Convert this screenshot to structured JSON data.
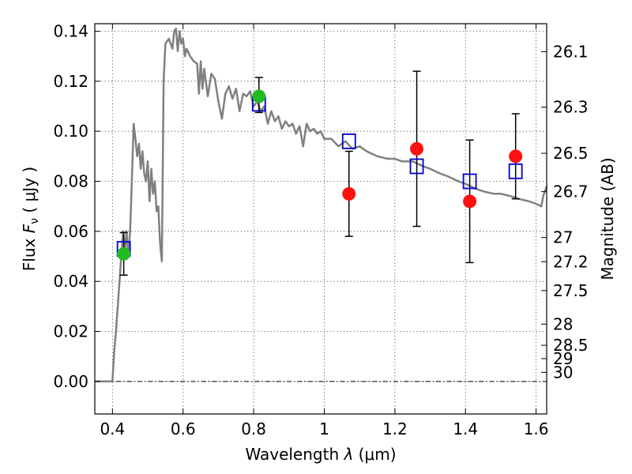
{
  "chart_data": {
    "type": "scatter",
    "xlabel": "Wavelength  λ (μm)",
    "ylabel": "Flux  Fν ( μJy )",
    "ylabel_parts": {
      "prefix": "Flux  ",
      "sym": "F",
      "sub": "ν",
      "suffix": "  ( μJy )"
    },
    "xlabel_parts": {
      "prefix": "Wavelength  ",
      "sym": "λ",
      "suffix": " (μm)"
    },
    "y2label": "Magnitude (AB)",
    "xlim": [
      0.35,
      1.63
    ],
    "ylim": [
      -0.013,
      0.143
    ],
    "grid": true,
    "x_ticks": [
      0.4,
      0.6,
      0.8,
      1.0,
      1.2,
      1.4,
      1.6
    ],
    "x_tick_labels": [
      "0.4",
      "0.6",
      "0.8",
      "1",
      "1.2",
      "1.4",
      "1.6"
    ],
    "y_ticks": [
      0.0,
      0.02,
      0.04,
      0.06,
      0.08,
      0.1,
      0.12,
      0.14
    ],
    "y_tick_labels": [
      "0.00",
      "0.02",
      "0.04",
      "0.06",
      "0.08",
      "0.10",
      "0.12",
      "0.14"
    ],
    "mag_ticks": [
      26.1,
      26.3,
      26.5,
      26.7,
      27,
      27.2,
      27.5,
      28,
      28.5,
      29,
      30
    ],
    "mag_tick_labels": [
      "26.1",
      "26.3",
      "26.5",
      "26.7",
      "27",
      "27.2",
      "27.5",
      "28",
      "28.5",
      "29",
      "30"
    ],
    "series": [
      {
        "name": "template-spectrum",
        "kind": "line",
        "color": "#808080",
        "x": [
          0.35,
          0.39,
          0.4,
          0.405,
          0.41,
          0.42,
          0.425,
          0.43,
          0.435,
          0.44,
          0.445,
          0.45,
          0.455,
          0.46,
          0.465,
          0.47,
          0.475,
          0.48,
          0.485,
          0.49,
          0.495,
          0.5,
          0.505,
          0.51,
          0.515,
          0.52,
          0.525,
          0.53,
          0.535,
          0.54,
          0.545,
          0.55,
          0.56,
          0.57,
          0.575,
          0.58,
          0.585,
          0.59,
          0.595,
          0.6,
          0.605,
          0.61,
          0.62,
          0.63,
          0.64,
          0.645,
          0.65,
          0.655,
          0.66,
          0.67,
          0.68,
          0.69,
          0.7,
          0.71,
          0.72,
          0.73,
          0.74,
          0.75,
          0.76,
          0.77,
          0.78,
          0.79,
          0.8,
          0.81,
          0.82,
          0.83,
          0.84,
          0.85,
          0.86,
          0.87,
          0.88,
          0.89,
          0.9,
          0.91,
          0.92,
          0.93,
          0.94,
          0.95,
          0.96,
          0.97,
          0.98,
          0.99,
          1.0,
          1.02,
          1.04,
          1.06,
          1.08,
          1.1,
          1.12,
          1.15,
          1.18,
          1.2,
          1.22,
          1.25,
          1.28,
          1.3,
          1.33,
          1.35,
          1.38,
          1.4,
          1.43,
          1.45,
          1.48,
          1.5,
          1.53,
          1.55,
          1.58,
          1.6,
          1.615,
          1.62,
          1.63
        ],
        "y": [
          0.0,
          0.0,
          0.0,
          0.012,
          0.02,
          0.04,
          0.05,
          0.06,
          0.052,
          0.06,
          0.05,
          0.06,
          0.08,
          0.103,
          0.097,
          0.09,
          0.095,
          0.085,
          0.092,
          0.083,
          0.08,
          0.088,
          0.072,
          0.085,
          0.075,
          0.08,
          0.068,
          0.07,
          0.055,
          0.048,
          0.12,
          0.135,
          0.137,
          0.133,
          0.14,
          0.141,
          0.132,
          0.14,
          0.135,
          0.137,
          0.13,
          0.133,
          0.13,
          0.128,
          0.127,
          0.115,
          0.128,
          0.117,
          0.125,
          0.114,
          0.123,
          0.121,
          0.112,
          0.105,
          0.115,
          0.118,
          0.113,
          0.117,
          0.108,
          0.115,
          0.114,
          0.116,
          0.11,
          0.112,
          0.108,
          0.11,
          0.103,
          0.108,
          0.104,
          0.106,
          0.101,
          0.104,
          0.102,
          0.103,
          0.099,
          0.102,
          0.094,
          0.103,
          0.1,
          0.101,
          0.099,
          0.1,
          0.097,
          0.097,
          0.094,
          0.096,
          0.093,
          0.094,
          0.092,
          0.09,
          0.089,
          0.089,
          0.088,
          0.088,
          0.086,
          0.085,
          0.083,
          0.082,
          0.08,
          0.079,
          0.077,
          0.076,
          0.075,
          0.075,
          0.074,
          0.073,
          0.072,
          0.071,
          0.07,
          0.074,
          0.078
        ]
      },
      {
        "name": "template-bandpass-flux",
        "kind": "open-square",
        "color": "#0000cc",
        "x": [
          0.432,
          0.815,
          1.07,
          1.262,
          1.412,
          1.542
        ],
        "y": [
          0.053,
          0.111,
          0.096,
          0.086,
          0.08,
          0.084
        ]
      },
      {
        "name": "observed-detections",
        "kind": "filled-circle",
        "color": "#22bb22",
        "x": [
          0.432,
          0.815
        ],
        "y": [
          0.051,
          0.114
        ],
        "err_low": [
          0.0085,
          0.0065
        ],
        "err_high": [
          0.0085,
          0.0075
        ]
      },
      {
        "name": "observed-upper-limits",
        "kind": "filled-circle",
        "color": "#ff1111",
        "x": [
          1.07,
          1.262,
          1.412,
          1.542
        ],
        "y": [
          0.075,
          0.093,
          0.072,
          0.09
        ],
        "err_low": [
          0.017,
          0.031,
          0.0245,
          0.017
        ],
        "err_high": [
          0.017,
          0.031,
          0.0245,
          0.017
        ]
      }
    ]
  }
}
